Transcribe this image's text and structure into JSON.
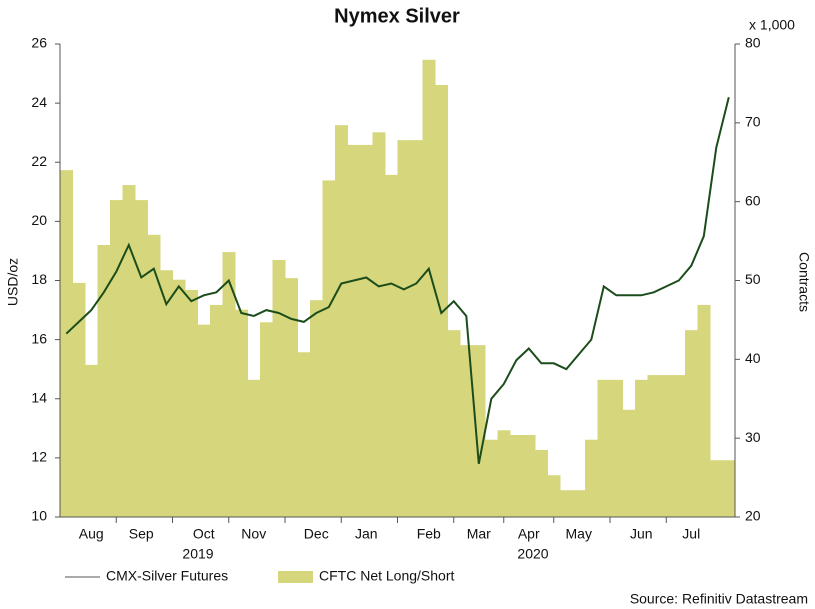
{
  "chart_data": {
    "type": "line-area",
    "title": "Nymex Silver",
    "y_label": "USD/oz",
    "y2_label": "Contracts",
    "y2_unit": "x 1,000",
    "source": "Source: Refinitiv Datastream",
    "x_group_labels": [
      "2019",
      "2020"
    ],
    "categories": [
      null,
      null,
      "Aug",
      null,
      null,
      null,
      "Sep",
      null,
      null,
      null,
      null,
      "Oct",
      null,
      null,
      null,
      "Nov",
      null,
      null,
      null,
      null,
      "Dec",
      null,
      null,
      null,
      "Jan",
      null,
      null,
      null,
      null,
      "Feb",
      null,
      null,
      null,
      "Mar",
      null,
      null,
      null,
      "Apr",
      null,
      null,
      null,
      "May",
      null,
      null,
      null,
      null,
      "Jun",
      null,
      null,
      null,
      "Jul",
      null,
      null,
      null
    ],
    "ylim": [
      10,
      26
    ],
    "yticks": [
      10,
      12,
      14,
      16,
      18,
      20,
      22,
      24,
      26
    ],
    "y2lim": [
      20,
      80
    ],
    "y2ticks": [
      20,
      30,
      40,
      50,
      60,
      70,
      80
    ],
    "series": [
      {
        "name": "CMX-Silver Futures",
        "type": "line",
        "color": "#1b4d1b",
        "values": [
          16.2,
          16.6,
          17.0,
          17.6,
          18.3,
          19.2,
          18.1,
          18.4,
          17.2,
          17.8,
          17.3,
          17.5,
          17.6,
          18.0,
          16.9,
          16.8,
          17.0,
          16.9,
          16.7,
          16.6,
          16.9,
          17.1,
          17.9,
          18.0,
          18.1,
          17.8,
          17.9,
          17.7,
          17.9,
          18.4,
          16.9,
          17.3,
          16.8,
          11.8,
          14.0,
          14.5,
          15.3,
          15.7,
          15.2,
          15.2,
          15.0,
          15.5,
          16.0,
          17.8,
          17.5,
          17.5,
          17.5,
          17.6,
          17.8,
          18.0,
          18.5,
          19.5,
          22.5,
          24.2
        ]
      },
      {
        "name": "CFTC Net Long/Short",
        "type": "area",
        "axis": "y2",
        "color": "#d6d67c",
        "values": [
          64,
          49.7,
          39.3,
          54.5,
          60.2,
          62.1,
          60.2,
          55.8,
          51.3,
          50.1,
          48.8,
          44.4,
          46.9,
          53.6,
          46.3,
          37.4,
          44.7,
          52.6,
          50.3,
          40.9,
          47.5,
          62.7,
          69.7,
          67.2,
          67.2,
          68.8,
          63.4,
          67.8,
          67.8,
          78.0,
          74.8,
          43.7,
          41.8,
          41.8,
          29.8,
          31.0,
          30.4,
          30.4,
          28.5,
          25.3,
          23.4,
          23.4,
          29.8,
          37.4,
          37.4,
          33.6,
          37.4,
          38.0,
          38.0,
          38.0,
          43.7,
          46.9,
          27.2,
          27.2
        ]
      }
    ]
  }
}
